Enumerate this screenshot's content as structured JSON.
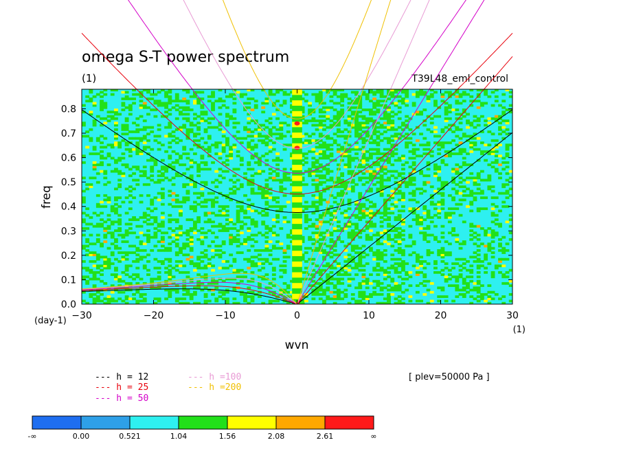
{
  "chart_data": {
    "type": "heatmap",
    "title": "omega S-T power spectrum",
    "subtitle_left": "(1)",
    "subtitle_right": "T39L48_eml_control",
    "xlabel": "wvn",
    "ylabel": "freq",
    "x_unit": "(1)",
    "y_unit": "(day-1)",
    "xlim": [
      -30,
      30
    ],
    "ylim": [
      0,
      0.88
    ],
    "x_ticks": [
      -30,
      -20,
      -10,
      0,
      10,
      20,
      30
    ],
    "y_ticks": [
      0.0,
      0.1,
      0.2,
      0.3,
      0.4,
      0.5,
      0.6,
      0.7,
      0.8
    ],
    "annotation": "[ plev=50000 Pa ]",
    "background_level": "0.521 – 1.04",
    "dispersion_curves": [
      {
        "label": "h = 12",
        "color": "#000000"
      },
      {
        "label": "h = 25",
        "color": "#e8000b"
      },
      {
        "label": "h = 50",
        "color": "#d400c8"
      },
      {
        "label": "h =100",
        "color": "#e89ad4"
      },
      {
        "label": "h =200",
        "color": "#f0c000"
      }
    ],
    "colorbar": {
      "labels": [
        "-∞",
        "0.00",
        "0.521",
        "1.04",
        "1.56",
        "2.08",
        "2.61",
        "∞"
      ],
      "colors": [
        "#1e6ef0",
        "#2ea0e8",
        "#2ef0f0",
        "#22e01a",
        "#ffff00",
        "#ffa800",
        "#ff1a1a"
      ]
    }
  }
}
